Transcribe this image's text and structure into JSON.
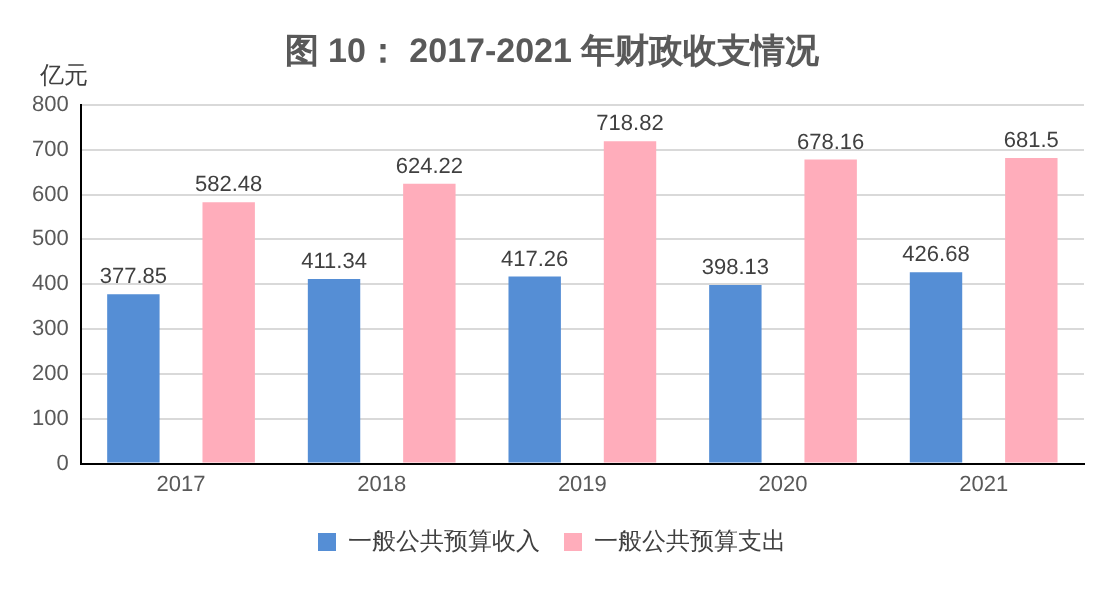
{
  "chart_data": {
    "type": "bar",
    "title": "图 10： 2017-2021 年财政收支情况",
    "ylabel": "亿元",
    "categories": [
      "2017",
      "2018",
      "2019",
      "2020",
      "2021"
    ],
    "series": [
      {
        "name": "一般公共预算收入",
        "color": "#558ed5",
        "values": [
          377.85,
          411.34,
          417.26,
          398.13,
          426.68
        ]
      },
      {
        "name": "一般公共预算支出",
        "color": "#ffadbb",
        "values": [
          582.48,
          624.22,
          718.82,
          678.16,
          681.5
        ]
      }
    ],
    "ylim": [
      0,
      800
    ],
    "yticks": [
      0,
      100,
      200,
      300,
      400,
      500,
      600,
      700,
      800
    ],
    "grid": "y",
    "legend": "bottom",
    "data_labels": true
  }
}
